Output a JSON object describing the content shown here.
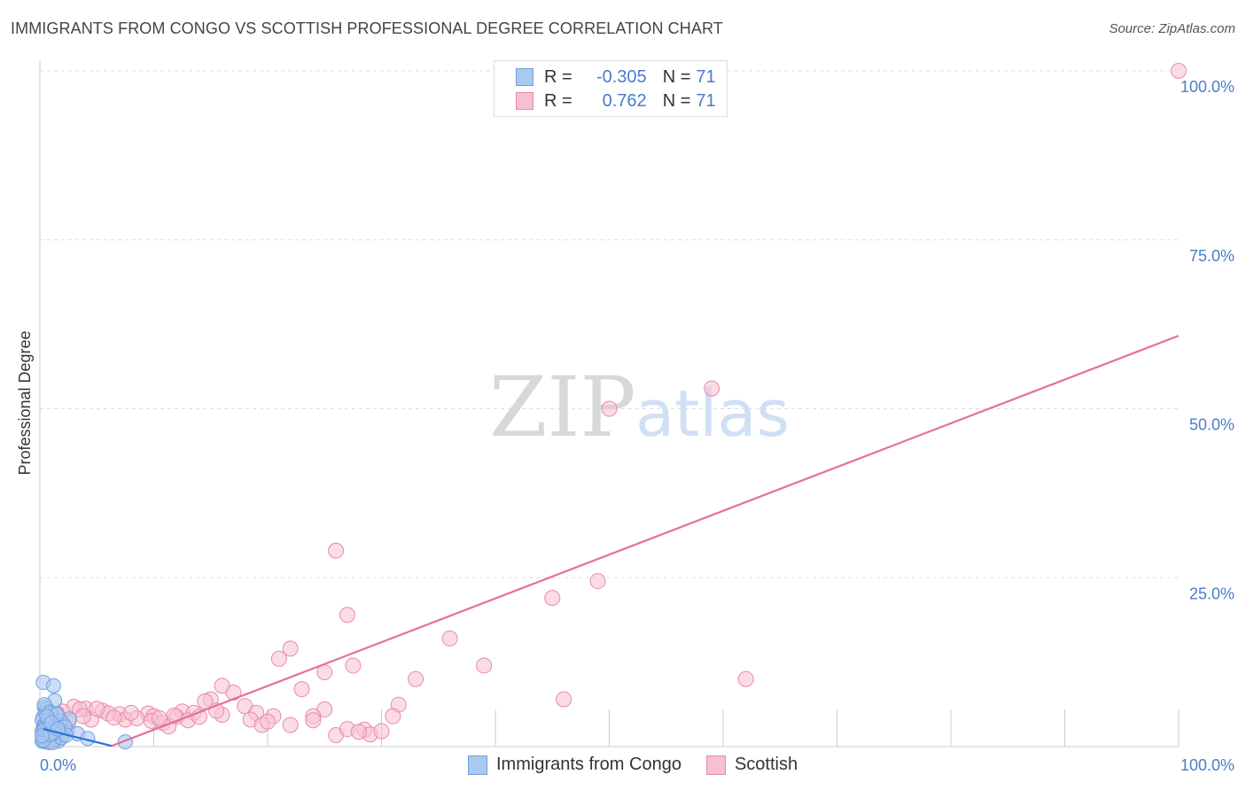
{
  "header": {
    "title": "IMMIGRANTS FROM CONGO VS SCOTTISH PROFESSIONAL DEGREE CORRELATION CHART",
    "source": "Source: ZipAtlas.com"
  },
  "watermark": {
    "zip": "ZIP",
    "atlas": "atlas"
  },
  "legend": {
    "rows": [
      {
        "r_label": "R =",
        "r_value": "-0.305",
        "n_label": "N =",
        "n_value": "71"
      },
      {
        "r_label": "R =",
        "r_value": "0.762",
        "n_label": "N =",
        "n_value": "71"
      }
    ]
  },
  "colors": {
    "congo_fill": "#aac8f0",
    "congo_stroke": "#6f9fe0",
    "congo_line": "#2e6fd6",
    "scottish_fill": "#f7c0d2",
    "scottish_stroke": "#e88aab",
    "scottish_line": "#e4709a",
    "tick_text": "#4a7cc9",
    "grid": "#dddddd"
  },
  "chart_data": {
    "type": "scatter",
    "title": "IMMIGRANTS FROM CONGO VS SCOTTISH PROFESSIONAL DEGREE CORRELATION CHART",
    "xlabel": "",
    "ylabel": "Professional Degree",
    "xlim": [
      0,
      100
    ],
    "ylim": [
      0,
      100
    ],
    "x_tick_labels": [
      "0.0%",
      "100.0%"
    ],
    "y_ticks": [
      25,
      50,
      75,
      100
    ],
    "y_tick_labels": [
      "25.0%",
      "50.0%",
      "75.0%",
      "100.0%"
    ],
    "legend_position": "top-center",
    "series": [
      {
        "name": "Immigrants from Congo",
        "r": -0.305,
        "n": 71,
        "trend": {
          "x": [
            0.3,
            6.3
          ],
          "y": [
            2.6,
            0.1
          ]
        },
        "points": [
          [
            0.3,
            9.5
          ],
          [
            1.2,
            9.0
          ],
          [
            1.3,
            6.8
          ],
          [
            0.4,
            5.8
          ],
          [
            0.6,
            5.6
          ],
          [
            0.8,
            5.2
          ],
          [
            0.5,
            4.9
          ],
          [
            1.0,
            4.7
          ],
          [
            1.5,
            4.6
          ],
          [
            0.3,
            4.4
          ],
          [
            0.7,
            4.2
          ],
          [
            1.1,
            4.0
          ],
          [
            0.2,
            3.9
          ],
          [
            0.6,
            3.7
          ],
          [
            1.4,
            3.6
          ],
          [
            0.9,
            3.4
          ],
          [
            0.4,
            3.2
          ],
          [
            1.2,
            3.1
          ],
          [
            0.5,
            3.0
          ],
          [
            0.8,
            2.9
          ],
          [
            1.0,
            2.8
          ],
          [
            0.3,
            2.7
          ],
          [
            0.6,
            2.6
          ],
          [
            1.3,
            2.5
          ],
          [
            0.7,
            2.4
          ],
          [
            0.2,
            2.3
          ],
          [
            1.1,
            2.2
          ],
          [
            0.5,
            2.1
          ],
          [
            0.9,
            2.0
          ],
          [
            0.4,
            1.9
          ],
          [
            1.5,
            1.8
          ],
          [
            0.6,
            1.7
          ],
          [
            0.8,
            1.6
          ],
          [
            1.2,
            1.5
          ],
          [
            0.3,
            1.4
          ],
          [
            1.0,
            1.3
          ],
          [
            0.7,
            1.2
          ],
          [
            0.5,
            1.1
          ],
          [
            1.4,
            1.0
          ],
          [
            0.9,
            0.9
          ],
          [
            1.6,
            0.8
          ],
          [
            0.2,
            0.8
          ],
          [
            2.1,
            3.3
          ],
          [
            2.4,
            2.4
          ],
          [
            2.0,
            1.6
          ],
          [
            2.6,
            4.1
          ],
          [
            3.3,
            1.9
          ],
          [
            4.2,
            1.2
          ],
          [
            7.5,
            0.7
          ],
          [
            0.4,
            6.2
          ],
          [
            0.9,
            5.0
          ],
          [
            1.8,
            3.8
          ],
          [
            2.2,
            2.9
          ],
          [
            1.7,
            2.1
          ],
          [
            0.6,
            1.5
          ],
          [
            1.3,
            1.1
          ],
          [
            0.5,
            0.7
          ],
          [
            0.8,
            0.6
          ],
          [
            1.1,
            0.6
          ],
          [
            0.3,
            0.9
          ],
          [
            1.9,
            1.3
          ],
          [
            2.3,
            1.7
          ],
          [
            0.7,
            3.9
          ],
          [
            1.5,
            4.8
          ],
          [
            0.4,
            2.5
          ],
          [
            1.2,
            2.0
          ],
          [
            0.9,
            1.8
          ],
          [
            0.6,
            4.5
          ],
          [
            1.0,
            3.5
          ],
          [
            0.2,
            1.6
          ],
          [
            1.6,
            2.6
          ]
        ]
      },
      {
        "name": "Scottish",
        "r": 0.762,
        "n": 71,
        "trend": {
          "x": [
            6.3,
            100
          ],
          "y": [
            0.1,
            60.8
          ]
        },
        "points": [
          [
            100.0,
            100.0
          ],
          [
            59.0,
            53.0
          ],
          [
            50.0,
            50.0
          ],
          [
            26.0,
            29.0
          ],
          [
            49.0,
            24.5
          ],
          [
            45.0,
            22.0
          ],
          [
            27.0,
            19.5
          ],
          [
            36.0,
            16.0
          ],
          [
            22.0,
            14.5
          ],
          [
            21.0,
            13.0
          ],
          [
            27.5,
            12.0
          ],
          [
            39.0,
            12.0
          ],
          [
            25.0,
            11.0
          ],
          [
            33.0,
            10.0
          ],
          [
            62.0,
            10.0
          ],
          [
            16.0,
            9.0
          ],
          [
            23.0,
            8.5
          ],
          [
            17.0,
            8.0
          ],
          [
            15.0,
            7.0
          ],
          [
            14.5,
            6.7
          ],
          [
            46.0,
            7.0
          ],
          [
            31.5,
            6.2
          ],
          [
            18.0,
            6.0
          ],
          [
            25.0,
            5.5
          ],
          [
            19.0,
            5.0
          ],
          [
            12.5,
            5.2
          ],
          [
            13.5,
            5.0
          ],
          [
            16.0,
            4.7
          ],
          [
            24.0,
            4.5
          ],
          [
            31.0,
            4.5
          ],
          [
            12.0,
            4.4
          ],
          [
            9.5,
            4.9
          ],
          [
            10.0,
            4.5
          ],
          [
            7.0,
            4.8
          ],
          [
            5.5,
            5.3
          ],
          [
            4.0,
            5.6
          ],
          [
            3.0,
            5.9
          ],
          [
            2.0,
            5.2
          ],
          [
            1.5,
            4.9
          ],
          [
            1.0,
            4.5
          ],
          [
            3.5,
            5.5
          ],
          [
            6.0,
            4.9
          ],
          [
            7.5,
            4.0
          ],
          [
            8.5,
            4.2
          ],
          [
            9.8,
            3.8
          ],
          [
            10.8,
            3.5
          ],
          [
            11.3,
            3.0
          ],
          [
            13.0,
            3.9
          ],
          [
            14.0,
            4.4
          ],
          [
            18.5,
            4.0
          ],
          [
            19.5,
            3.2
          ],
          [
            20.5,
            4.5
          ],
          [
            22.0,
            3.2
          ],
          [
            24.0,
            3.9
          ],
          [
            26.0,
            1.7
          ],
          [
            27.0,
            2.6
          ],
          [
            28.5,
            2.5
          ],
          [
            29.0,
            1.8
          ],
          [
            30.0,
            2.3
          ],
          [
            28.0,
            2.2
          ],
          [
            4.5,
            4.0
          ],
          [
            5.0,
            5.6
          ],
          [
            6.5,
            4.3
          ],
          [
            2.5,
            3.6
          ],
          [
            1.8,
            2.9
          ],
          [
            3.8,
            4.5
          ],
          [
            8.0,
            5.0
          ],
          [
            10.5,
            4.2
          ],
          [
            15.5,
            5.3
          ],
          [
            20.0,
            3.7
          ],
          [
            11.8,
            4.6
          ]
        ]
      }
    ]
  },
  "bottom_legend": [
    {
      "label": "Immigrants from Congo"
    },
    {
      "label": "Scottish"
    }
  ]
}
